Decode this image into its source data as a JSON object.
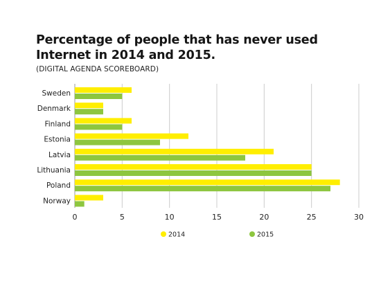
{
  "header": {
    "title": "Percentage of people that has never used Internet in 2014 and 2015.",
    "subtitle": "(DIGITAL AGENDA SCOREBOARD)"
  },
  "colors": {
    "series_2014": "#ffee00",
    "series_2015": "#8dc63f",
    "grid": "#cccccc",
    "axis": "#999999"
  },
  "chart_data": {
    "type": "bar",
    "orientation": "horizontal",
    "title": "Percentage of people that has never used Internet in 2014 and 2015.",
    "subtitle": "(DIGITAL AGENDA SCOREBOARD)",
    "categories": [
      "Sweden",
      "Denmark",
      "Finland",
      "Estonia",
      "Latvia",
      "Lithuania",
      "Poland",
      "Norway"
    ],
    "series": [
      {
        "name": "2014",
        "color": "#ffee00",
        "values": [
          6,
          3,
          6,
          12,
          21,
          25,
          28,
          3
        ]
      },
      {
        "name": "2015",
        "color": "#8dc63f",
        "values": [
          5,
          3,
          5,
          9,
          18,
          25,
          27,
          1
        ]
      }
    ],
    "xlim": [
      0,
      30
    ],
    "xticks": [
      0,
      5,
      10,
      15,
      20,
      25,
      30
    ],
    "xlabel": "",
    "ylabel": "",
    "grid": "vertical",
    "legend": "bottom"
  }
}
